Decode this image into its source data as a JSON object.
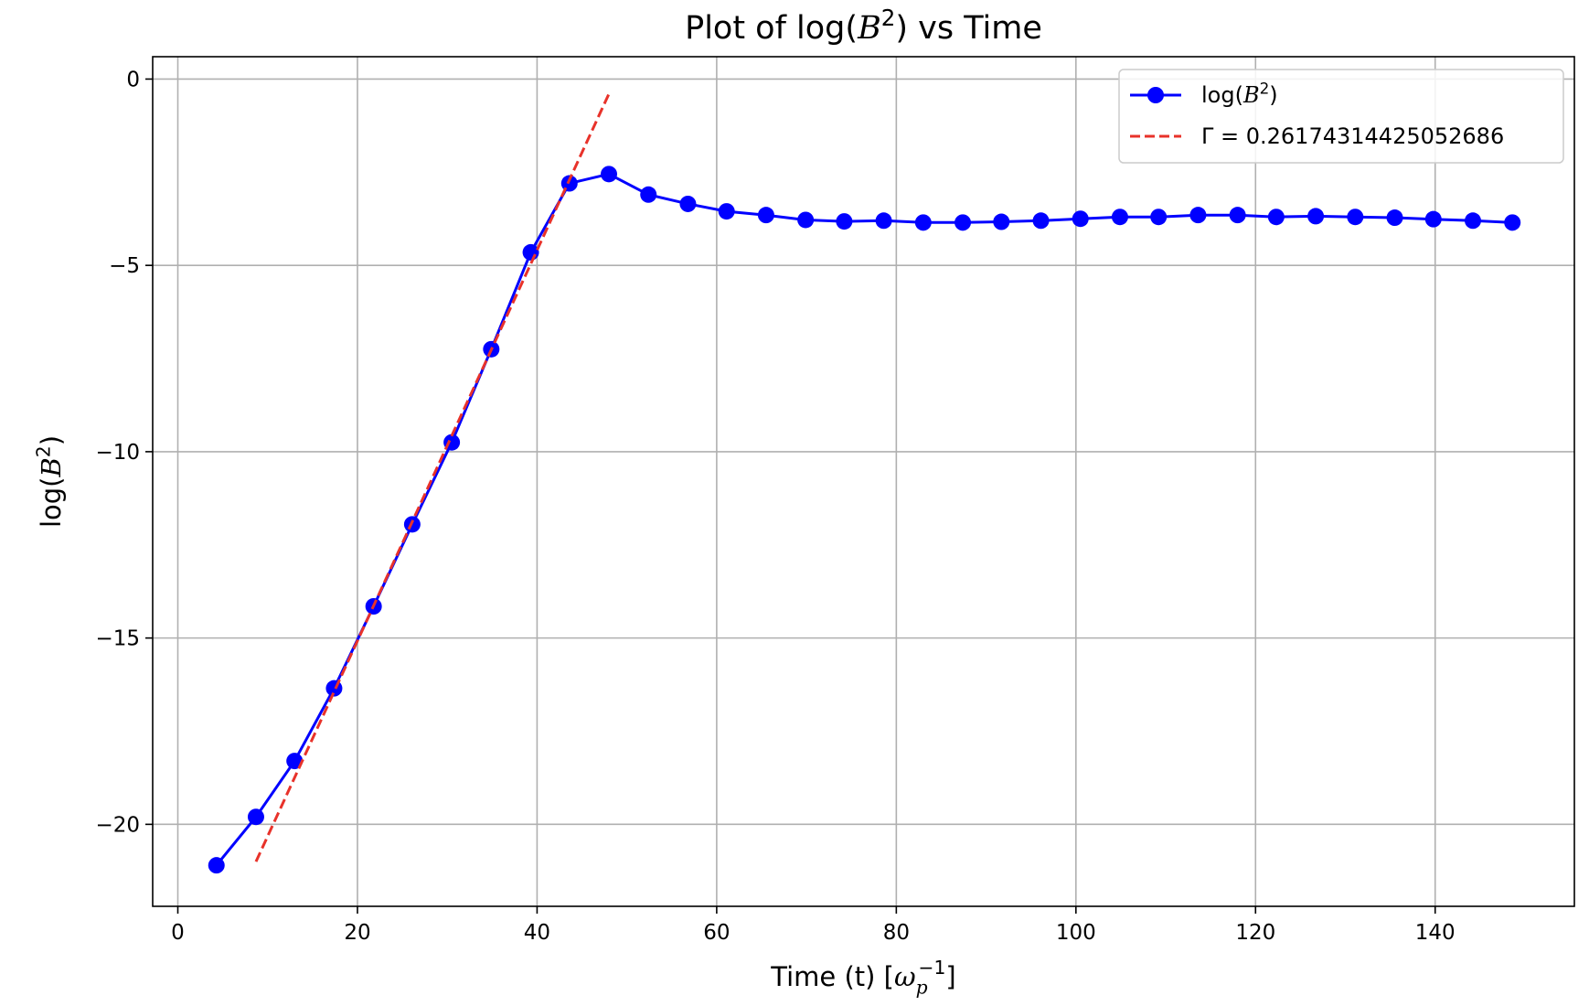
{
  "chart_data": {
    "type": "line",
    "title": "Plot of log(B²) vs Time",
    "title_parts": {
      "pre": "Plot of log(",
      "base": "B",
      "sup": "2",
      "post": ") vs Time"
    },
    "xlabel": "Time (t) [ω_p^-1]",
    "xlabel_parts": {
      "pre": "Time (t) [",
      "base": "ω",
      "sub": "p",
      "sup": "−1",
      "post": "]"
    },
    "ylabel": "log(B²)",
    "ylabel_parts": {
      "pre": "log(",
      "base": "B",
      "sup": "2",
      "post": ")"
    },
    "xlim": [
      -2.8,
      155.5
    ],
    "ylim": [
      -22.2,
      0.6
    ],
    "xticks": [
      0,
      20,
      40,
      60,
      80,
      100,
      120,
      140
    ],
    "yticks": [
      0,
      -5,
      -10,
      -15,
      -20
    ],
    "xtick_labels": [
      "0",
      "20",
      "40",
      "60",
      "80",
      "100",
      "120",
      "140"
    ],
    "ytick_labels": [
      "0",
      "−5",
      "−10",
      "−15",
      "−20"
    ],
    "grid": true,
    "legend_position": "top-right",
    "series": [
      {
        "name": "log(B²)",
        "name_parts": {
          "pre": "log(",
          "base": "B",
          "sup": "2",
          "post": ")"
        },
        "color": "#0000ff",
        "style": "solid",
        "marker": "circle",
        "x": [
          4.3,
          8.7,
          13.0,
          17.4,
          21.8,
          26.1,
          30.5,
          34.9,
          39.3,
          43.6,
          48.0,
          52.4,
          56.8,
          61.1,
          65.5,
          69.9,
          74.2,
          78.6,
          83.0,
          87.4,
          91.7,
          96.1,
          100.5,
          104.9,
          109.2,
          113.6,
          118.0,
          122.3,
          126.7,
          131.1,
          135.5,
          139.8,
          144.2,
          148.6
        ],
        "y": [
          -21.1,
          -19.8,
          -18.3,
          -16.35,
          -14.15,
          -11.95,
          -9.75,
          -7.25,
          -4.65,
          -2.8,
          -2.55,
          -3.1,
          -3.35,
          -3.55,
          -3.65,
          -3.78,
          -3.82,
          -3.8,
          -3.85,
          -3.85,
          -3.83,
          -3.8,
          -3.75,
          -3.7,
          -3.7,
          -3.65,
          -3.65,
          -3.7,
          -3.68,
          -3.7,
          -3.72,
          -3.76,
          -3.8,
          -3.85
        ]
      },
      {
        "name": "Γ = 0.26174314425052686",
        "color": "#e8322a",
        "style": "dashed",
        "marker": "none",
        "x": [
          8.7,
          48.0
        ],
        "y": [
          -21.0,
          -0.4
        ]
      }
    ]
  }
}
